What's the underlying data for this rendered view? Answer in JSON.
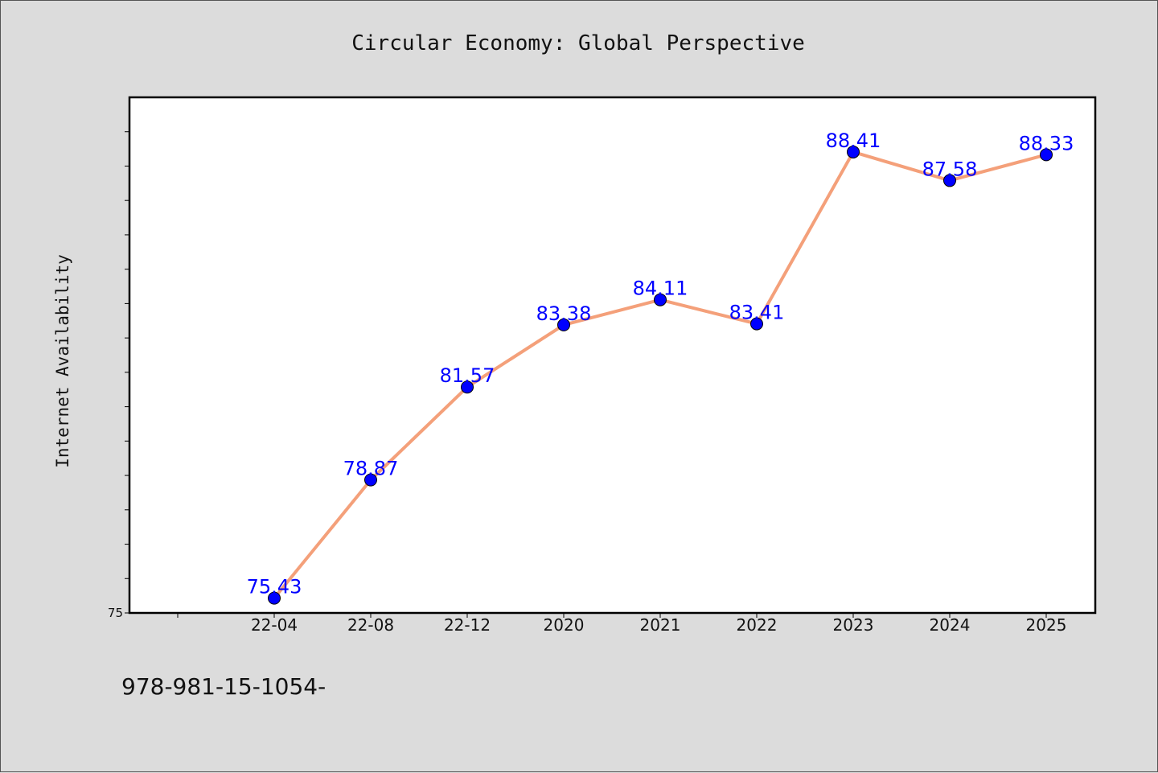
{
  "chart_data": {
    "type": "line",
    "title": "Circular Economy: Global Perspective",
    "xlabel": "",
    "ylabel": "Internet Availability",
    "categories": [
      "22-04",
      "22-08",
      "22-12",
      "2020",
      "2021",
      "2022",
      "2023",
      "2024",
      "2025"
    ],
    "series": [
      {
        "values": [
          75.43,
          78.87,
          81.57,
          83.38,
          84.11,
          83.41,
          88.41,
          87.58,
          88.33
        ],
        "data_labels": [
          "75.43",
          "78.87",
          "81.57",
          "83.38",
          "84.11",
          "83.41",
          "88.41",
          "87.58",
          "88.33"
        ]
      }
    ],
    "ylim": [
      75,
      90
    ],
    "y_tick_labels": [
      "75"
    ],
    "grid": false,
    "line_color": "#f4a07a",
    "marker_color": "#0000ff",
    "label_color": "#0000ff"
  },
  "footer": {
    "isbn": "978-981-15-1054-"
  }
}
